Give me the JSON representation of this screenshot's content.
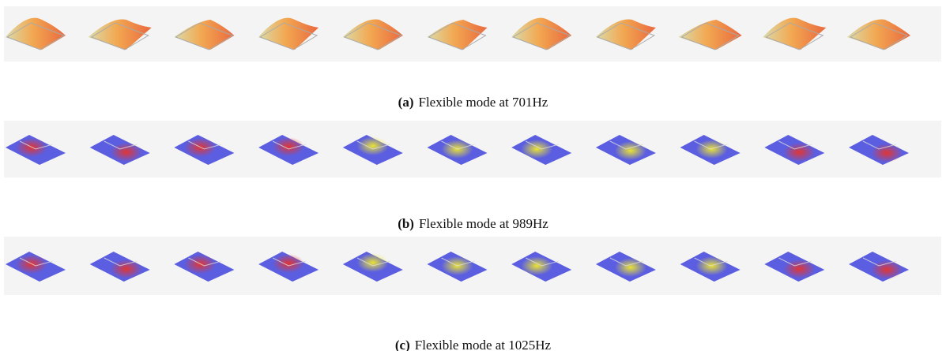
{
  "figures": [
    {
      "label": "(a)",
      "caption": "Flexible mode at 701Hz"
    },
    {
      "label": "(b)",
      "caption": "Flexible mode at 989Hz"
    },
    {
      "label": "(c)",
      "caption": "Flexible mode at 1025Hz"
    }
  ]
}
